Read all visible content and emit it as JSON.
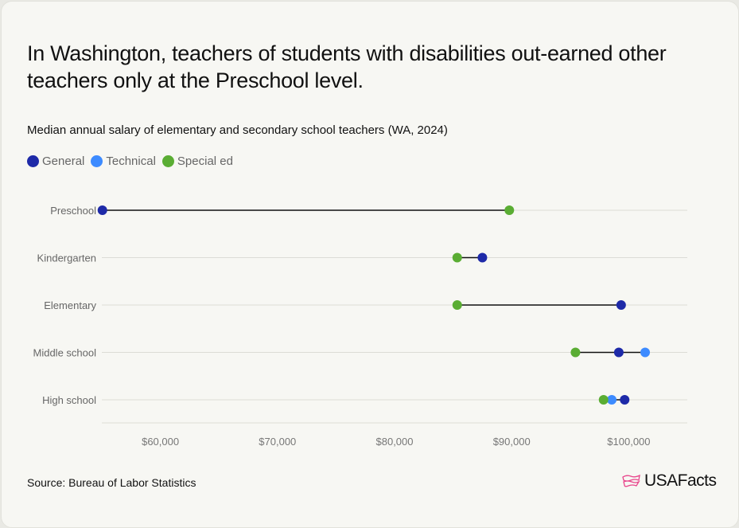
{
  "title": "In Washington, teachers of students with disabilities out-earned other teachers only at the Preschool level.",
  "subtitle": "Median annual salary of elementary and secondary school teachers (WA, 2024)",
  "source": "Source: Bureau of Labor Statistics",
  "logo_text": "USAFacts",
  "chart_data": {
    "type": "dot-plot",
    "title": "Median annual salary of elementary and secondary school teachers (WA, 2024)",
    "categories": [
      "Preschool",
      "Kindergarten",
      "Elementary",
      "Middle school",
      "High school"
    ],
    "series": [
      {
        "name": "General",
        "color": "#1e2aa8",
        "values": [
          55050,
          87500,
          99350,
          99150,
          99650
        ]
      },
      {
        "name": "Technical",
        "color": "#3d8bff",
        "values": [
          null,
          null,
          null,
          101400,
          98550
        ]
      },
      {
        "name": "Special ed",
        "color": "#5aad33",
        "values": [
          89800,
          85350,
          85350,
          95450,
          97850
        ]
      }
    ],
    "xlim": [
      55000,
      105000
    ],
    "xticks": [
      60000,
      70000,
      80000,
      90000,
      100000
    ],
    "xtick_labels": [
      "$60,000",
      "$70,000",
      "$80,000",
      "$90,000",
      "$100,000"
    ],
    "grid": "horizontal",
    "legend": "top-left"
  }
}
